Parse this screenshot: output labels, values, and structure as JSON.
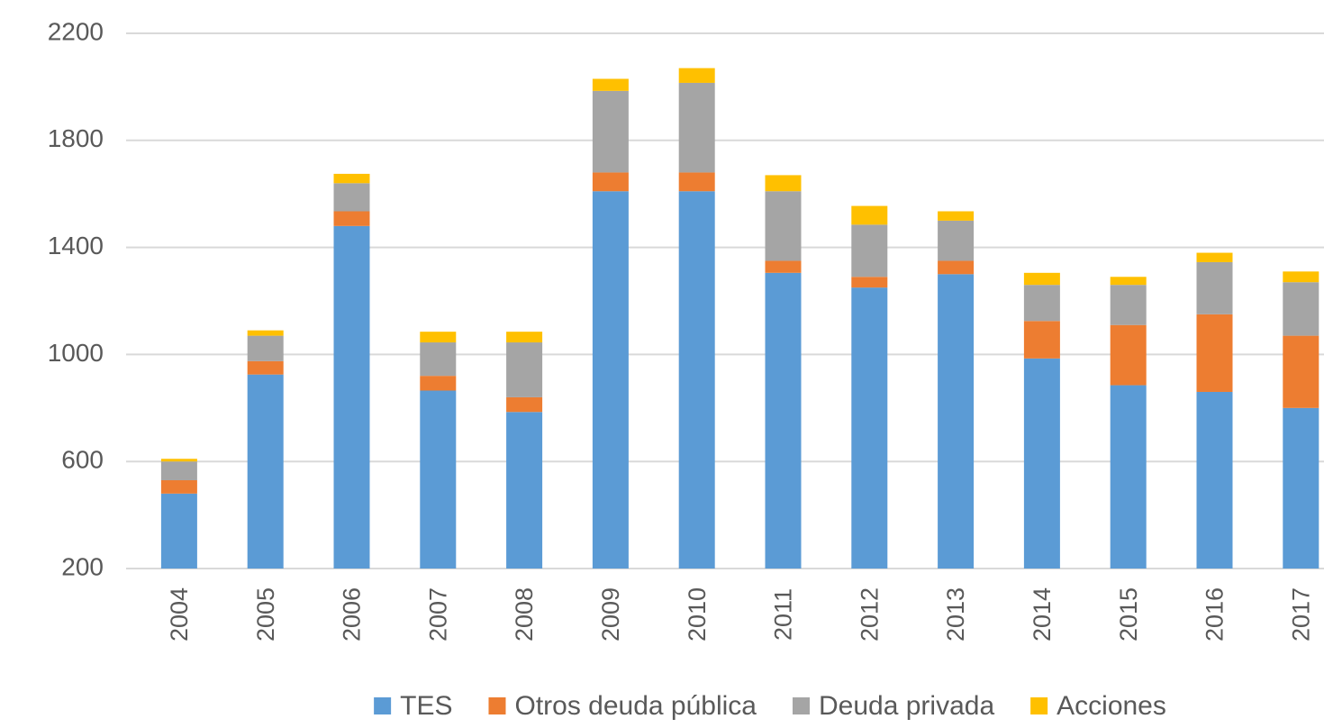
{
  "chart_data": {
    "type": "stacked_bar",
    "categories": [
      "2004",
      "2005",
      "2006",
      "2007",
      "2008",
      "2009",
      "2010",
      "2011",
      "2012",
      "2013",
      "2014",
      "2015",
      "2016",
      "2017"
    ],
    "series": [
      {
        "name": "TES",
        "color": "#5b9bd5",
        "values": [
          480,
          925,
          1480,
          865,
          785,
          1610,
          1610,
          1305,
          1250,
          1300,
          985,
          885,
          860,
          800
        ]
      },
      {
        "name": "Otros deuda pública",
        "color": "#ed7d31",
        "values": [
          50,
          50,
          55,
          55,
          55,
          70,
          70,
          45,
          40,
          50,
          140,
          225,
          290,
          270
        ]
      },
      {
        "name": "Deuda privada",
        "color": "#a5a5a5",
        "values": [
          70,
          95,
          105,
          125,
          205,
          305,
          335,
          260,
          195,
          150,
          135,
          150,
          195,
          200
        ]
      },
      {
        "name": "Acciones",
        "color": "#ffc000",
        "values": [
          10,
          20,
          35,
          40,
          40,
          45,
          55,
          60,
          70,
          35,
          45,
          30,
          35,
          40
        ]
      }
    ],
    "ylim": [
      200,
      2200
    ],
    "yticks": [
      200,
      600,
      1000,
      1400,
      1800,
      2200
    ],
    "grid": true,
    "legend": "bottom"
  }
}
